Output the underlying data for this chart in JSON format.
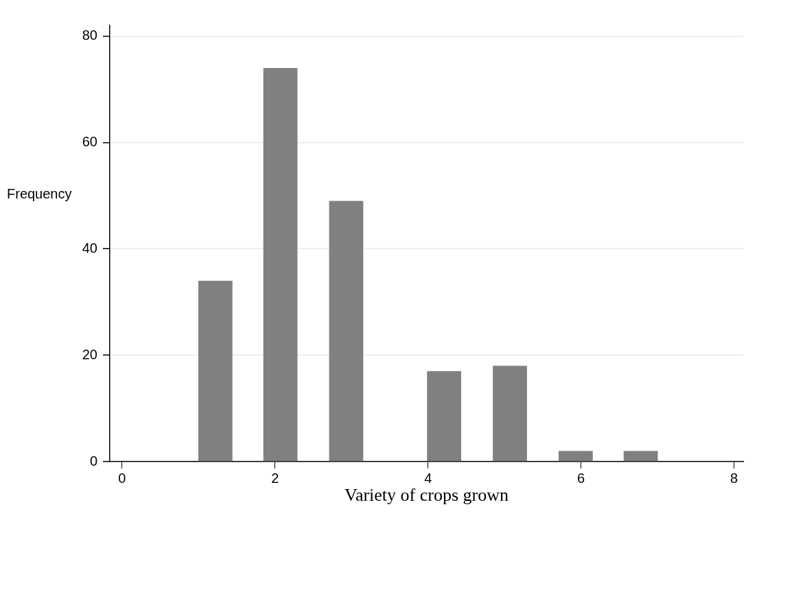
{
  "chart_data": {
    "type": "bar",
    "xlabel": "Variety of crops grown",
    "ylabel": "Frequency",
    "x": [
      1.22,
      2.07,
      2.93,
      4.21,
      5.07,
      5.93,
      6.78
    ],
    "values": [
      34,
      74,
      49,
      17,
      18,
      2,
      2
    ],
    "color": "#808080",
    "xlim": [
      -0.16,
      8.12
    ],
    "xticks": [
      0,
      2,
      4,
      6,
      8
    ],
    "ylim": [
      0,
      82
    ],
    "yticks": [
      0,
      20,
      40,
      60,
      80
    ],
    "grid": "y"
  }
}
